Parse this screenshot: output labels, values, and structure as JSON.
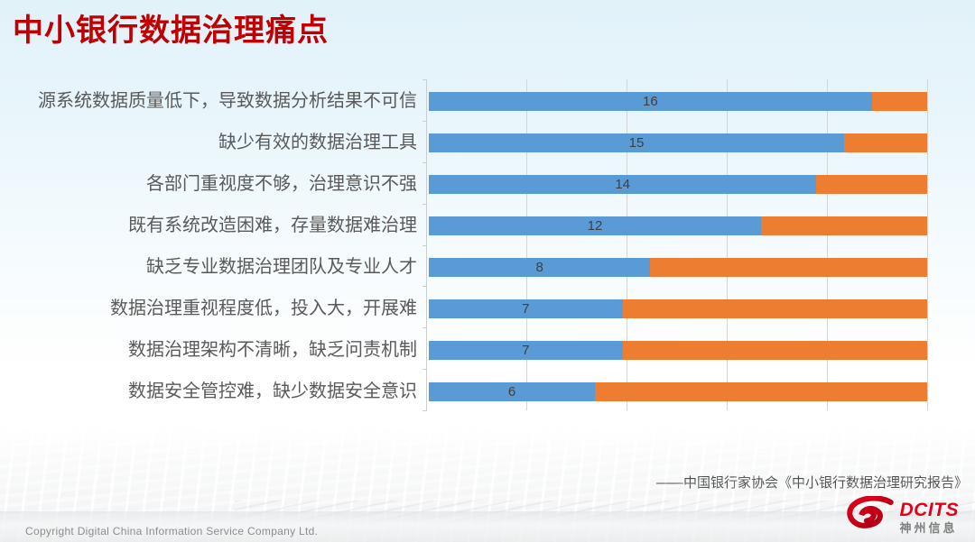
{
  "page": {
    "title": "中小银行数据治理痛点",
    "source_citation": "——中国银行家协会《中小银行数据治理研究报告》",
    "copyright": "Copyright  Digital China Information Service Company Ltd.",
    "logo": {
      "brand": "DCITS",
      "brand_cn": "神州信息"
    }
  },
  "colors": {
    "title_red": "#C00000",
    "bar_blue": "#5B9BD5",
    "bar_orange": "#ED7D31",
    "gridline": "#D2D6D8",
    "category_label_grey": "#595959",
    "value_label_grey": "#3F3F3F",
    "copyright_grey": "#8C8C8C",
    "logo_red": "#E3001B",
    "logo_grey": "#7F7F7F",
    "background_top": "#E2F2F9",
    "background_bottom": "#FFFFFF"
  },
  "chart_data": {
    "type": "bar",
    "orientation": "horizontal",
    "stacked": true,
    "title": "",
    "xlabel": "",
    "ylabel": "",
    "categories": [
      "源系统数据质量低下，导致数据分析结果不可信",
      "缺少有效的数据治理工具",
      "各部门重视度不够，治理意识不强",
      "既有系统改造困难，存量数据难治理",
      "缺乏专业数据治理团队及专业人才",
      "数据治理重视程度低，投入大，开展难",
      "数据治理架构不清晰，缺乏问责机制",
      "数据安全管控难，缺少数据安全意识"
    ],
    "series": [
      {
        "color_key": "bar_blue",
        "values": [
          16,
          15,
          14,
          12,
          8,
          7,
          7,
          6
        ]
      },
      {
        "color_key": "bar_orange",
        "values": [
          2,
          3,
          4,
          6,
          10,
          11,
          11,
          12
        ]
      }
    ],
    "value_labels": [
      16,
      15,
      14,
      12,
      8,
      7,
      7,
      6
    ],
    "x_total": 18,
    "xlim": [
      0,
      18
    ],
    "gridline_count": 5,
    "grid": "vertical-only",
    "legend": "none"
  }
}
